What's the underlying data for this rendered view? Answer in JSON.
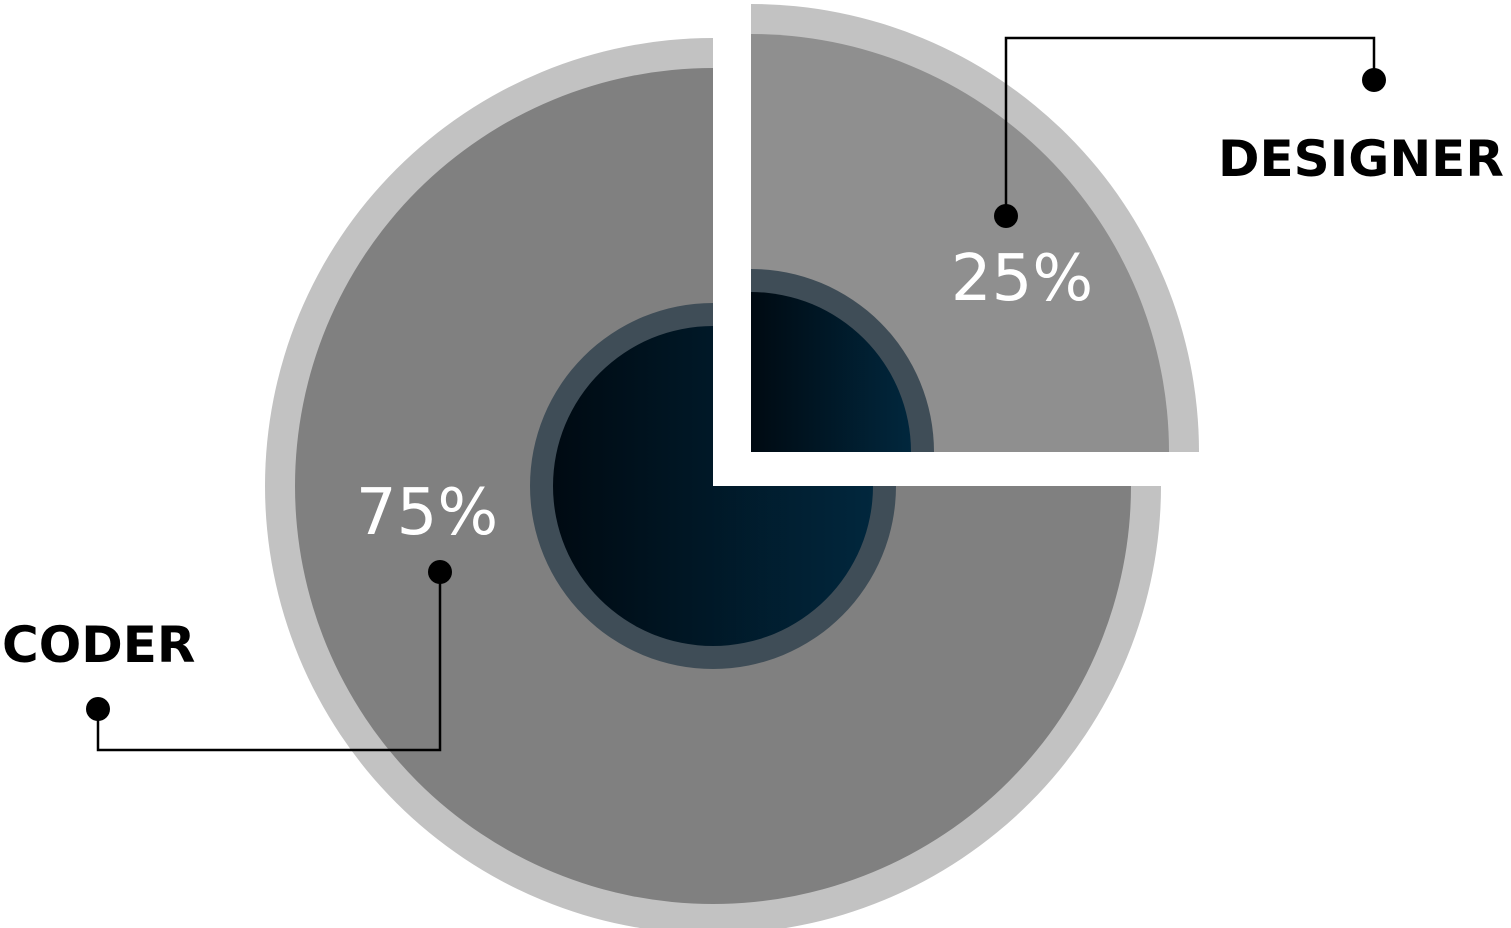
{
  "chart_data": {
    "type": "pie",
    "categories": [
      "CODER",
      "DESIGNER"
    ],
    "values": [
      75,
      25
    ],
    "value_labels": [
      "75%",
      "25%"
    ],
    "legend": "none",
    "colors": {
      "coder_slice": "#808080",
      "designer_slice": "#8f8f8f",
      "outer_ring": "#c2c2c2",
      "hub_ring": "#3f4d57",
      "hub_dark": "#000a12",
      "hub_light": "#01273d",
      "leader": "#000000",
      "value_label": "#ffffff"
    }
  }
}
